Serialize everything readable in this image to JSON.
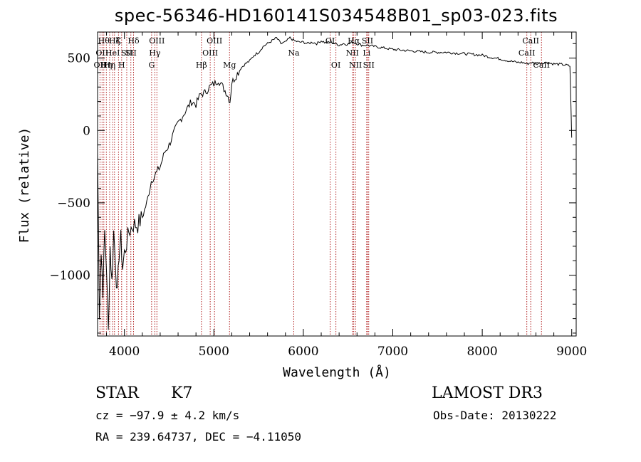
{
  "chart_data": {
    "type": "line",
    "title": "spec-56346-HD160141S034548B01_sp03-023.fits",
    "xlabel": "Wavelength (Å)",
    "ylabel": "Flux (relative)",
    "xlim": [
      3700,
      9050
    ],
    "ylim": [
      -1420,
      680
    ],
    "xticks": [
      4000,
      5000,
      6000,
      7000,
      8000,
      9000
    ],
    "xtick_labels": [
      "4000",
      "5000",
      "6000",
      "7000",
      "8000",
      "9000"
    ],
    "yticks": [
      -1000,
      -500,
      0,
      500
    ],
    "ytick_labels": [
      "−1000",
      "−500",
      "0",
      "500"
    ],
    "series": [
      {
        "name": "flux",
        "x": [
          3700,
          3720,
          3740,
          3760,
          3780,
          3800,
          3820,
          3840,
          3860,
          3880,
          3900,
          3920,
          3940,
          3960,
          3980,
          4000,
          4050,
          4100,
          4150,
          4200,
          4250,
          4300,
          4350,
          4400,
          4450,
          4500,
          4550,
          4600,
          4650,
          4700,
          4750,
          4800,
          4850,
          4900,
          4950,
          5000,
          5050,
          5100,
          5150,
          5180,
          5200,
          5250,
          5300,
          5350,
          5400,
          5450,
          5500,
          5550,
          5600,
          5650,
          5700,
          5750,
          5800,
          5850,
          5900,
          5950,
          6000,
          6050,
          6100,
          6150,
          6200,
          6250,
          6300,
          6350,
          6400,
          6450,
          6500,
          6550,
          6600,
          6650,
          6700,
          6750,
          6800,
          6900,
          7000,
          7100,
          7200,
          7300,
          7400,
          7500,
          7600,
          7700,
          7800,
          7900,
          8000,
          8100,
          8200,
          8300,
          8400,
          8450,
          8500,
          8550,
          8600,
          8650,
          8700,
          8800,
          8900,
          8950,
          8980,
          9000
        ],
        "y": [
          -150,
          -1250,
          -850,
          -1100,
          -700,
          -950,
          -1400,
          -800,
          -1050,
          -700,
          -900,
          -1150,
          -850,
          -750,
          -950,
          -850,
          -700,
          -650,
          -650,
          -600,
          -500,
          -350,
          -300,
          -250,
          -150,
          -100,
          -20,
          50,
          100,
          150,
          200,
          180,
          250,
          260,
          300,
          320,
          350,
          300,
          250,
          200,
          330,
          380,
          430,
          460,
          480,
          520,
          540,
          580,
          600,
          620,
          640,
          600,
          610,
          640,
          620,
          610,
          610,
          600,
          610,
          600,
          620,
          605,
          610,
          600,
          590,
          600,
          595,
          610,
          600,
          590,
          590,
          585,
          580,
          570,
          560,
          555,
          550,
          545,
          540,
          540,
          540,
          535,
          530,
          525,
          520,
          505,
          495,
          480,
          470,
          470,
          460,
          470,
          460,
          465,
          470,
          460,
          455,
          450,
          445,
          -50
        ],
        "color": "#000000"
      }
    ],
    "lines": [
      {
        "wl": 3727,
        "label": "OII",
        "row": 3
      },
      {
        "wl": 3750,
        "label": "OII",
        "row": 2
      },
      {
        "wl": 3770,
        "label": "Hθ",
        "row": 1
      },
      {
        "wl": 3798,
        "label": "Hη",
        "row": 3
      },
      {
        "wl": 3835,
        "label": "Hη",
        "row": 3
      },
      {
        "wl": 3869,
        "label": "HeI",
        "row": 2
      },
      {
        "wl": 3889,
        "label": "Hζ",
        "row": 1
      },
      {
        "wl": 3934,
        "label": "K",
        "row": 1
      },
      {
        "wl": 3969,
        "label": "H",
        "row": 3
      },
      {
        "wl": 4026,
        "label": "SII",
        "row": 2
      },
      {
        "wl": 4072,
        "label": "SII",
        "row": 2
      },
      {
        "wl": 4102,
        "label": "Hδ",
        "row": 1
      },
      {
        "wl": 4304,
        "label": "G",
        "row": 3
      },
      {
        "wl": 4340,
        "label": "Hγ",
        "row": 2
      },
      {
        "wl": 4363,
        "label": "OIII",
        "row": 1
      },
      {
        "wl": 4861,
        "label": "Hβ",
        "row": 3
      },
      {
        "wl": 4959,
        "label": "OIII",
        "row": 2
      },
      {
        "wl": 5007,
        "label": "OIII",
        "row": 1
      },
      {
        "wl": 5175,
        "label": "Mg",
        "row": 3
      },
      {
        "wl": 5893,
        "label": "Na",
        "row": 2
      },
      {
        "wl": 6300,
        "label": "OI",
        "row": 1
      },
      {
        "wl": 6364,
        "label": "OI",
        "row": 3
      },
      {
        "wl": 6548,
        "label": "NII",
        "row": 2
      },
      {
        "wl": 6563,
        "label": "Hα",
        "row": 1
      },
      {
        "wl": 6583,
        "label": "NII",
        "row": 3
      },
      {
        "wl": 6708,
        "label": "Li",
        "row": 2
      },
      {
        "wl": 6717,
        "label": "SII",
        "row": 1
      },
      {
        "wl": 6731,
        "label": "SII",
        "row": 3
      },
      {
        "wl": 8498,
        "label": "CaII",
        "row": 2
      },
      {
        "wl": 8542,
        "label": "CaII",
        "row": 1
      },
      {
        "wl": 8662,
        "label": "CaII",
        "row": 3
      }
    ]
  },
  "info": {
    "class": "STAR",
    "subclass": "K7",
    "survey": "LAMOST DR3",
    "cz": "cz = −97.9 ± 4.2 km/s",
    "obs_date": "Obs-Date: 20130222",
    "coords": "RA = 239.64737, DEC =  −4.11050"
  },
  "colors": {
    "line_marker": "#b22222",
    "spectrum": "#000000"
  }
}
